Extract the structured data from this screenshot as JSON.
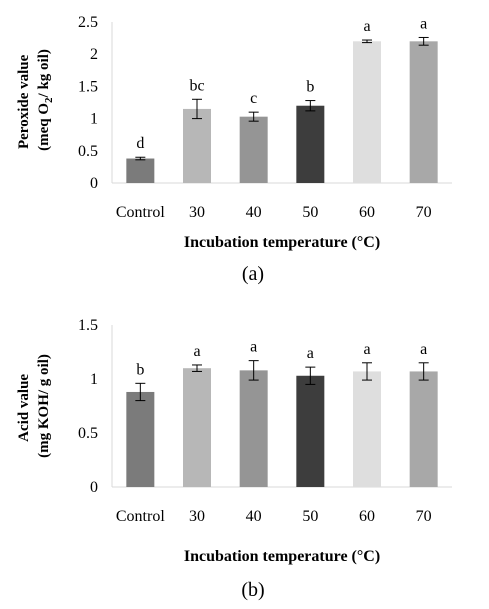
{
  "chart_data": [
    {
      "type": "bar",
      "panel_label": "(a)",
      "categories": [
        "Control",
        "30",
        "40",
        "50",
        "60",
        "70"
      ],
      "values": [
        0.38,
        1.15,
        1.03,
        1.2,
        2.2,
        2.2
      ],
      "errors": [
        0.02,
        0.15,
        0.07,
        0.08,
        0.02,
        0.06
      ],
      "significance": [
        "d",
        "bc",
        "c",
        "b",
        "a",
        "a"
      ],
      "bar_colors": [
        "#7b7b7b",
        "#b7b7b7",
        "#959595",
        "#3d3d3d",
        "#dedede",
        "#a8a8a8"
      ],
      "xlabel": "Incubation temperature (°C)",
      "ylabel_line1": "Peroxide value",
      "ylabel_line2_pre": "(meq O",
      "ylabel_line2_sub": "2",
      "ylabel_line2_post": "/ kg oil)",
      "ylim": [
        0,
        2.5
      ],
      "yticks": [
        0,
        0.5,
        1,
        1.5,
        2,
        2.5
      ],
      "ytick_labels": [
        "0",
        "0.5",
        "1",
        "1.5",
        "2",
        "2.5"
      ],
      "grid": false
    },
    {
      "type": "bar",
      "panel_label": "(b)",
      "categories": [
        "Control",
        "30",
        "40",
        "50",
        "60",
        "70"
      ],
      "values": [
        0.88,
        1.1,
        1.08,
        1.03,
        1.07,
        1.07
      ],
      "errors": [
        0.08,
        0.03,
        0.09,
        0.08,
        0.08,
        0.08
      ],
      "significance": [
        "b",
        "a",
        "a",
        "a",
        "a",
        "a"
      ],
      "bar_colors": [
        "#7b7b7b",
        "#b7b7b7",
        "#959595",
        "#3d3d3d",
        "#dedede",
        "#a8a8a8"
      ],
      "xlabel": "Incubation temperature (°C)",
      "ylabel_line1": "Acid value",
      "ylabel_line2_pre": "(mg KOH/ g oil)",
      "ylabel_line2_sub": "",
      "ylabel_line2_post": "",
      "ylim": [
        0,
        1.5
      ],
      "yticks": [
        0,
        0.5,
        1,
        1.5
      ],
      "ytick_labels": [
        "0",
        "0.5",
        "1",
        "1.5"
      ],
      "grid": false
    }
  ]
}
